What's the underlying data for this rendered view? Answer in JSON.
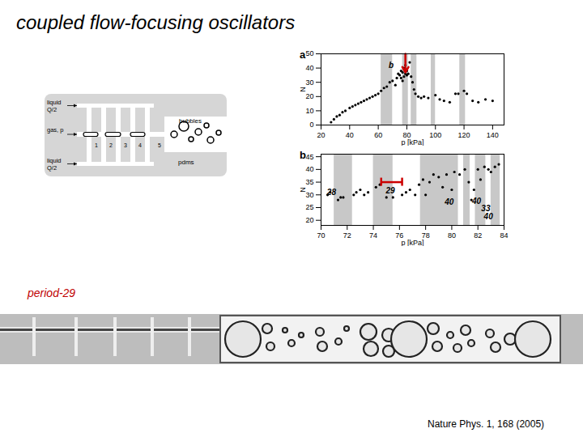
{
  "title": "coupled flow-focusing oscillators",
  "diagram": {
    "inlets": [
      {
        "label": "liquid",
        "flow": "Q/2"
      },
      {
        "label": "gas, p"
      },
      {
        "label": "liquid",
        "flow": "Q/2"
      }
    ],
    "junctions": [
      "1",
      "2",
      "3",
      "4",
      "5"
    ],
    "outlet_label": "bubbles",
    "material": "pdms"
  },
  "image_caption": "period-29",
  "citation": "Nature Phys. 1, 168 (2005)",
  "chart_data": [
    {
      "type": "scatter",
      "panel": "a",
      "x_label": "p [kPa]",
      "y_label": "N",
      "color": "#000000",
      "xlim": [
        20,
        148
      ],
      "xticks": [
        20,
        40,
        60,
        80,
        100,
        120,
        140
      ],
      "ylim": [
        0,
        50
      ],
      "yticks": [
        0,
        10,
        20,
        30,
        40,
        50
      ],
      "shaded": [
        [
          62,
          70
        ],
        [
          77,
          81
        ],
        [
          83,
          87
        ],
        [
          97,
          100
        ],
        [
          117,
          121
        ]
      ],
      "annotations": [
        {
          "text": "b",
          "x": 69,
          "y": 42
        }
      ],
      "arrow": {
        "x": 79,
        "y": 37,
        "color": "#cc0000"
      },
      "x": [
        27,
        29,
        31,
        33,
        35,
        37,
        40,
        42,
        44,
        46,
        48,
        50,
        52,
        54,
        56,
        58,
        60,
        62,
        64,
        66,
        68,
        70,
        72,
        73,
        74,
        75,
        76,
        76,
        77,
        77,
        78,
        78,
        79,
        79,
        80,
        80,
        81,
        82,
        83,
        84,
        85,
        86,
        88,
        90,
        92,
        95,
        100,
        103,
        106,
        110,
        114,
        116,
        120,
        122,
        126,
        130,
        135,
        140
      ],
      "values": [
        2,
        4,
        6,
        7,
        9,
        10,
        12,
        13,
        14,
        15,
        16,
        17,
        18,
        19,
        20,
        21,
        22,
        24,
        26,
        27,
        30,
        31,
        28,
        33,
        36,
        35,
        38,
        33,
        37,
        31,
        40,
        34,
        42,
        36,
        38,
        35,
        36,
        44,
        34,
        30,
        25,
        22,
        20,
        19,
        20,
        19,
        21,
        18,
        17,
        16,
        22,
        22,
        24,
        22,
        17,
        16,
        18,
        17
      ]
    },
    {
      "type": "scatter",
      "panel": "b",
      "x_label": "p [kPa]",
      "y_label": "N",
      "color": "#000000",
      "xlim": [
        70,
        84
      ],
      "xticks": [
        70,
        72,
        74,
        76,
        78,
        80,
        82,
        84
      ],
      "ylim": [
        18,
        46
      ],
      "yticks": [
        20,
        25,
        30,
        35,
        40,
        45
      ],
      "shaded": [
        [
          71,
          72.4
        ],
        [
          74,
          75.5
        ],
        [
          77.6,
          80.5
        ],
        [
          80.9,
          81.4
        ],
        [
          81.8,
          82.6
        ],
        [
          83,
          83.7
        ]
      ],
      "annotations": [
        {
          "text": "28",
          "x": 70.8,
          "y": 31
        },
        {
          "text": "29",
          "x": 75.3,
          "y": 31.5
        },
        {
          "text": "40",
          "x": 79.8,
          "y": 27
        },
        {
          "text": "40",
          "x": 81.9,
          "y": 27.5
        },
        {
          "text": "33",
          "x": 82.6,
          "y": 24.5
        },
        {
          "text": "40",
          "x": 82.8,
          "y": 21.5
        }
      ],
      "bracket": {
        "x": [
          74.6,
          76.2
        ],
        "y": 35,
        "color": "#cc0000"
      },
      "x": [
        70.5,
        70.7,
        71.3,
        71.5,
        71.7,
        72.5,
        72.7,
        73,
        73.3,
        73.6,
        74.2,
        74.5,
        75,
        75.5,
        76.2,
        76.5,
        76.8,
        77.2,
        77.5,
        77.8,
        78,
        78.3,
        78.6,
        79,
        79.3,
        79.6,
        80,
        80.2,
        80.6,
        81,
        81.3,
        81.5,
        81.7,
        82,
        82.2,
        82.5,
        82.8,
        83,
        83.3,
        83.6
      ],
      "values": [
        30,
        31,
        28,
        29,
        29,
        30,
        31,
        32,
        30,
        31,
        33,
        34,
        29,
        29,
        30,
        31,
        32,
        30,
        34,
        36,
        30,
        35,
        38,
        37,
        33,
        38,
        32,
        39,
        38,
        40,
        35,
        28,
        32,
        40,
        36,
        41,
        40,
        39,
        41,
        42
      ]
    }
  ]
}
